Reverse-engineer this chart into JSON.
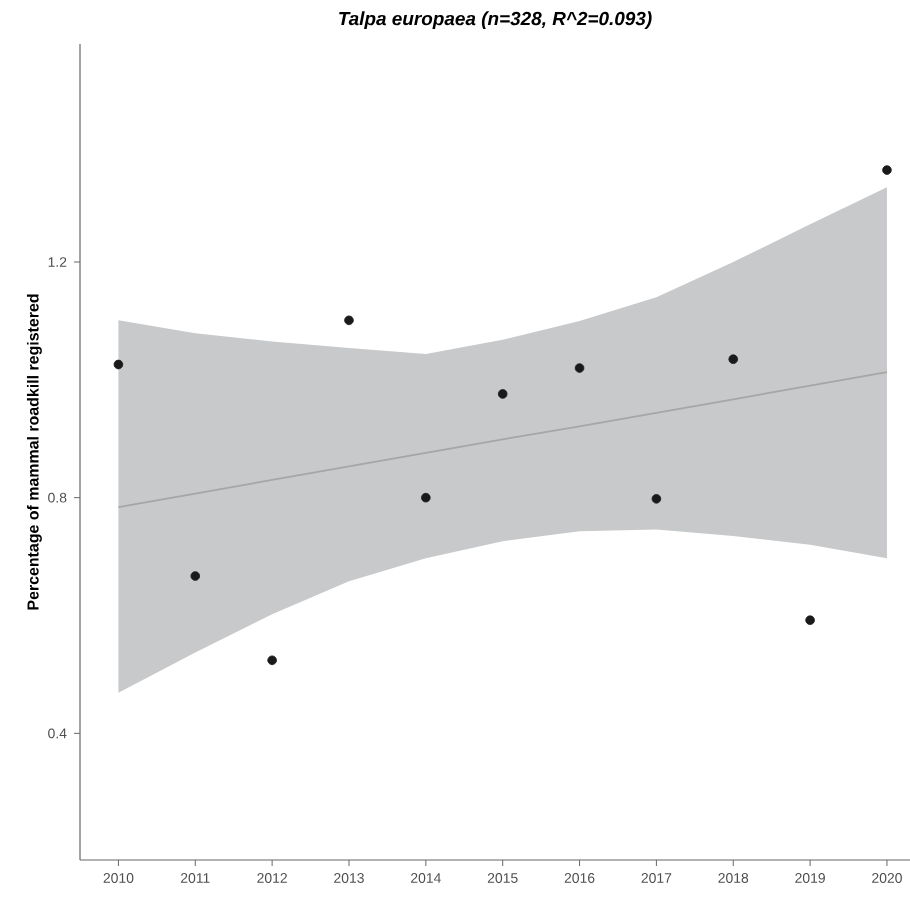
{
  "chart_data": {
    "type": "scatter",
    "title": "*Talpa europaea (n=328, R^2=0.093)*",
    "ylabel": "Percentage of mammal roadkill registered",
    "x": [
      2010,
      2011,
      2012,
      2013,
      2014,
      2015,
      2016,
      2017,
      2018,
      2019,
      2020
    ],
    "series": [
      {
        "color": "#1a1a1a",
        "marker": "circle",
        "values": [
          1.026,
          0.667,
          0.524,
          1.101,
          0.8,
          0.976,
          1.02,
          0.798,
          1.035,
          0.592,
          1.356
        ]
      },
      {
        "type": "line",
        "color": "#a6a6a6",
        "marker": "none",
        "x": [
          2010,
          2011,
          2012,
          2013,
          2014,
          2015,
          2016,
          2017,
          2018,
          2019,
          2020
        ],
        "values": [
          0.784,
          0.807,
          0.83,
          0.853,
          0.876,
          0.899,
          0.921,
          0.944,
          0.967,
          0.99,
          1.013
        ],
        "lower": [
          0.469,
          0.537,
          0.602,
          0.658,
          0.697,
          0.726,
          0.743,
          0.746,
          0.735,
          0.72,
          0.697
        ],
        "upper": [
          1.101,
          1.079,
          1.065,
          1.054,
          1.044,
          1.068,
          1.1,
          1.14,
          1.2,
          1.264,
          1.327
        ]
      }
    ],
    "xlim": [
      2009.5,
      2020.3
    ],
    "ylim": [
      0.185,
      1.57
    ],
    "xticks": [
      2010,
      2011,
      2012,
      2013,
      2014,
      2015,
      2016,
      2017,
      2018,
      2019,
      2020
    ],
    "yticks": [
      0.4,
      0.8,
      1.2
    ],
    "grid": false
  }
}
